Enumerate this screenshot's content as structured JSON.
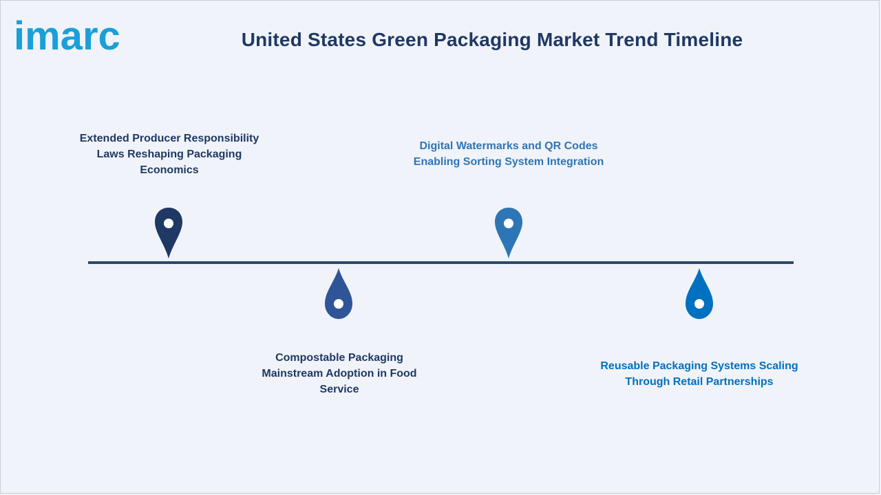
{
  "header": {
    "logo_text": "imarc",
    "title": "United States Green Packaging Market Trend Timeline"
  },
  "colors": {
    "background": "#f0f3f9",
    "timeline": "#2a4a6e",
    "title": "#1f3864",
    "logo": "#1aa0d8"
  },
  "timeline": {
    "items": [
      {
        "label": "Extended Producer Responsibility Laws Reshaping Packaging Economics",
        "color": "#1f3864",
        "marker": "map-pin-icon"
      },
      {
        "label": "Compostable Packaging Mainstream Adoption in Food Service",
        "color": "#2f5597",
        "marker": "drop-icon"
      },
      {
        "label": "Digital Watermarks and QR Codes Enabling Sorting System Integration",
        "color": "#2e75b6",
        "marker": "map-pin-icon"
      },
      {
        "label": "Reusable Packaging Systems Scaling Through Retail Partnerships",
        "color": "#0070c0",
        "marker": "drop-icon"
      }
    ]
  }
}
